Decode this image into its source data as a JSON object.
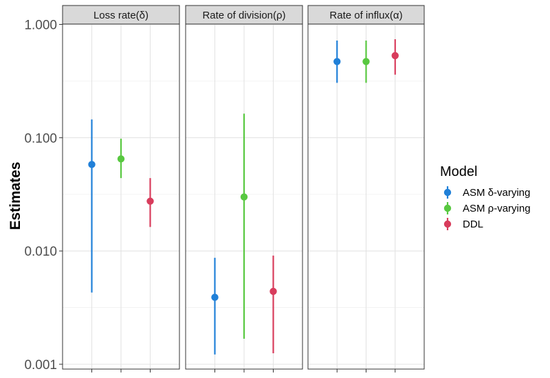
{
  "chart_data": {
    "type": "scatter",
    "subtype": "pointrange",
    "facets": [
      "Loss rate(δ)",
      "Rate of division(ρ)",
      "Rate of influx(α)"
    ],
    "ylabel": "Estimates",
    "xlabel": "",
    "yscale": "log10",
    "ylim": [
      0.001,
      1.0
    ],
    "yticks": [
      0.001,
      0.01,
      0.1,
      1.0
    ],
    "ytick_labels": [
      "0.001",
      "0.010",
      "0.100",
      "1.000"
    ],
    "grid": true,
    "legend": {
      "title": "Model",
      "placement": "right"
    },
    "series": [
      {
        "name": "ASM δ-varying",
        "color": "#2080d8",
        "points": [
          {
            "facet": "Loss rate(δ)",
            "estimate": 0.058,
            "lower": 0.0043,
            "upper": 0.145
          },
          {
            "facet": "Rate of division(ρ)",
            "estimate": 0.0039,
            "lower": 0.00122,
            "upper": 0.0087
          },
          {
            "facet": "Rate of influx(α)",
            "estimate": 0.47,
            "lower": 0.305,
            "upper": 0.72
          }
        ]
      },
      {
        "name": "ASM ρ-varying",
        "color": "#58c840",
        "points": [
          {
            "facet": "Loss rate(δ)",
            "estimate": 0.065,
            "lower": 0.044,
            "upper": 0.098
          },
          {
            "facet": "Rate of division(ρ)",
            "estimate": 0.03,
            "lower": 0.00168,
            "upper": 0.163
          },
          {
            "facet": "Rate of influx(α)",
            "estimate": 0.47,
            "lower": 0.305,
            "upper": 0.72
          }
        ]
      },
      {
        "name": "DDL",
        "color": "#d83c5c",
        "points": [
          {
            "facet": "Loss rate(δ)",
            "estimate": 0.0275,
            "lower": 0.0163,
            "upper": 0.044
          },
          {
            "facet": "Rate of division(ρ)",
            "estimate": 0.0044,
            "lower": 0.00125,
            "upper": 0.0091
          },
          {
            "facet": "Rate of influx(α)",
            "estimate": 0.53,
            "lower": 0.36,
            "upper": 0.74
          }
        ]
      }
    ]
  }
}
